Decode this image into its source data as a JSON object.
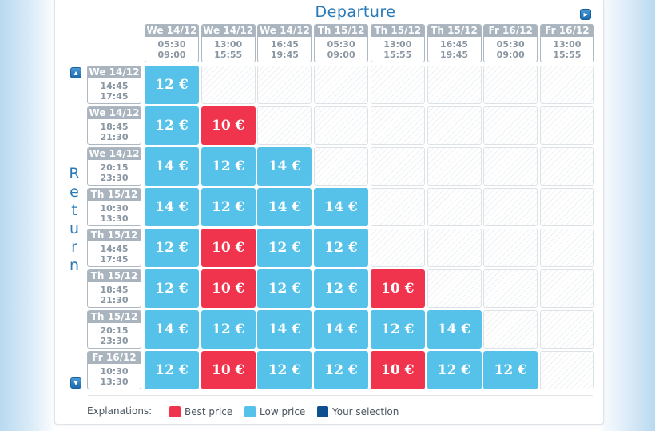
{
  "header": {
    "departure_title": "Departure",
    "return_title": "Return"
  },
  "columns": [
    {
      "date": "We 14/12",
      "t1": "05:30",
      "t2": "09:00"
    },
    {
      "date": "We 14/12",
      "t1": "13:00",
      "t2": "15:55"
    },
    {
      "date": "We 14/12",
      "t1": "16:45",
      "t2": "19:45"
    },
    {
      "date": "Th 15/12",
      "t1": "05:30",
      "t2": "09:00"
    },
    {
      "date": "Th 15/12",
      "t1": "13:00",
      "t2": "15:55"
    },
    {
      "date": "Th 15/12",
      "t1": "16:45",
      "t2": "19:45"
    },
    {
      "date": "Fr 16/12",
      "t1": "05:30",
      "t2": "09:00"
    },
    {
      "date": "Fr 16/12",
      "t1": "13:00",
      "t2": "15:55"
    }
  ],
  "rows": [
    {
      "date": "We 14/12",
      "t1": "14:45",
      "t2": "17:45",
      "cells": [
        {
          "price": "12 €",
          "type": "low"
        },
        null,
        null,
        null,
        null,
        null,
        null,
        null
      ]
    },
    {
      "date": "We 14/12",
      "t1": "18:45",
      "t2": "21:30",
      "cells": [
        {
          "price": "12 €",
          "type": "low"
        },
        {
          "price": "10 €",
          "type": "best"
        },
        null,
        null,
        null,
        null,
        null,
        null
      ]
    },
    {
      "date": "We 14/12",
      "t1": "20:15",
      "t2": "23:30",
      "cells": [
        {
          "price": "14 €",
          "type": "low"
        },
        {
          "price": "12 €",
          "type": "low"
        },
        {
          "price": "14 €",
          "type": "low"
        },
        null,
        null,
        null,
        null,
        null
      ]
    },
    {
      "date": "Th 15/12",
      "t1": "10:30",
      "t2": "13:30",
      "cells": [
        {
          "price": "14 €",
          "type": "low"
        },
        {
          "price": "12 €",
          "type": "low"
        },
        {
          "price": "14 €",
          "type": "low"
        },
        {
          "price": "14 €",
          "type": "low"
        },
        null,
        null,
        null,
        null
      ]
    },
    {
      "date": "Th 15/12",
      "t1": "14:45",
      "t2": "17:45",
      "cells": [
        {
          "price": "12 €",
          "type": "low"
        },
        {
          "price": "10 €",
          "type": "best"
        },
        {
          "price": "12 €",
          "type": "low"
        },
        {
          "price": "12 €",
          "type": "low"
        },
        null,
        null,
        null,
        null
      ]
    },
    {
      "date": "Th 15/12",
      "t1": "18:45",
      "t2": "21:30",
      "cells": [
        {
          "price": "12 €",
          "type": "low"
        },
        {
          "price": "10 €",
          "type": "best"
        },
        {
          "price": "12 €",
          "type": "low"
        },
        {
          "price": "12 €",
          "type": "low"
        },
        {
          "price": "10 €",
          "type": "best"
        },
        null,
        null,
        null
      ]
    },
    {
      "date": "Th 15/12",
      "t1": "20:15",
      "t2": "23:30",
      "cells": [
        {
          "price": "14 €",
          "type": "low"
        },
        {
          "price": "12 €",
          "type": "low"
        },
        {
          "price": "14 €",
          "type": "low"
        },
        {
          "price": "14 €",
          "type": "low"
        },
        {
          "price": "12 €",
          "type": "low"
        },
        {
          "price": "14 €",
          "type": "low"
        },
        null,
        null
      ]
    },
    {
      "date": "Fr 16/12",
      "t1": "10:30",
      "t2": "13:30",
      "cells": [
        {
          "price": "12 €",
          "type": "low"
        },
        {
          "price": "10 €",
          "type": "best"
        },
        {
          "price": "12 €",
          "type": "low"
        },
        {
          "price": "12 €",
          "type": "low"
        },
        {
          "price": "10 €",
          "type": "best"
        },
        {
          "price": "12 €",
          "type": "low"
        },
        {
          "price": "12 €",
          "type": "low"
        },
        null
      ]
    }
  ],
  "legend": {
    "title": "Explanations:",
    "items": [
      {
        "label": "Best price",
        "color": "#f0344d"
      },
      {
        "label": "Low price",
        "color": "#56c2ea"
      },
      {
        "label": "Your selection",
        "color": "#0e4f8f"
      }
    ]
  },
  "icons": {
    "next": "chevron-right-icon",
    "up": "chevron-up-icon",
    "down": "chevron-down-icon"
  }
}
